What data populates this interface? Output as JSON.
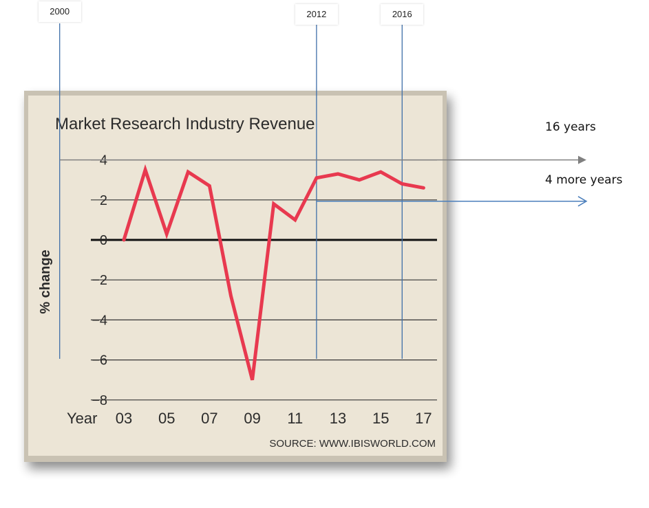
{
  "chart_data": {
    "type": "line",
    "title": "Market Research Industry Revenue",
    "ylabel": "% change",
    "xlabel_prefix": "Year",
    "source": "SOURCE: WWW.IBISWORLD.COM",
    "x": [
      2003,
      2004,
      2005,
      2006,
      2007,
      2008,
      2009,
      2010,
      2011,
      2012,
      2013,
      2014,
      2015,
      2016,
      2017
    ],
    "x_tick_labels": [
      "03",
      "05",
      "07",
      "09",
      "11",
      "13",
      "15",
      "17"
    ],
    "x_tick_values": [
      2003,
      2005,
      2007,
      2009,
      2011,
      2013,
      2015,
      2017
    ],
    "y_ticks": [
      4,
      2,
      0,
      -2,
      -4,
      -6,
      -8
    ],
    "ylim": [
      -8,
      4
    ],
    "series": [
      {
        "values": [
          0.0,
          3.5,
          0.3,
          3.4,
          2.7,
          -2.8,
          -7.0,
          1.8,
          1.0,
          3.1,
          3.3,
          3.0,
          3.4,
          2.8,
          2.6
        ],
        "color": "#e8394f"
      }
    ],
    "grid": true,
    "colors": {
      "panel": "#ece5d6",
      "line": "#e8394f",
      "zero_line": "#111111",
      "grid": "#333333"
    }
  },
  "annotations": {
    "markers": [
      {
        "label": "2000",
        "year": 2000
      },
      {
        "label": "2012",
        "year": 2012
      },
      {
        "label": "2016",
        "year": 2016
      }
    ],
    "arrows": [
      {
        "label": "16 years",
        "at_value": 4,
        "from_year": 2000,
        "color": "#808080"
      },
      {
        "label": "4 more years",
        "at_value": 2,
        "from_year": 2012,
        "color": "#4a7ebb"
      }
    ],
    "marker_line_color": "#3e6ea8"
  }
}
